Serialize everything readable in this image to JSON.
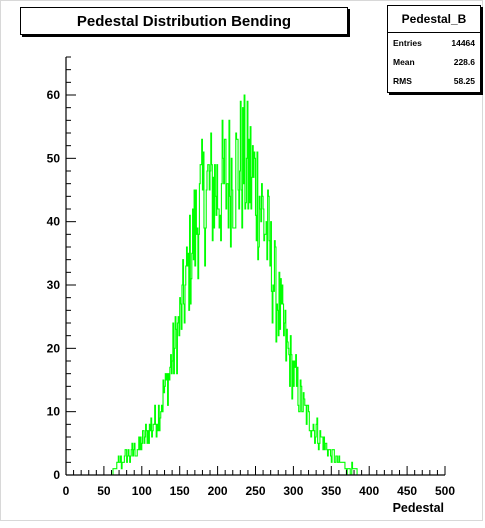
{
  "chart_data": {
    "type": "histogram",
    "title": "Pedestal Distribution Bending",
    "xlabel": "Pedestal",
    "ylabel": "",
    "xlim": [
      0,
      500
    ],
    "ylim": [
      0,
      66
    ],
    "x_ticks": [
      0,
      50,
      100,
      150,
      200,
      250,
      300,
      350,
      400,
      450,
      500
    ],
    "y_ticks": [
      0,
      10,
      20,
      30,
      40,
      50,
      60
    ],
    "bin_width": 1,
    "line_color": "#00ff00",
    "grid": false,
    "series": [
      {
        "name": "Pedestal_B",
        "x": [
          50,
          55,
          60,
          65,
          70,
          75,
          80,
          85,
          90,
          95,
          100,
          105,
          110,
          115,
          120,
          125,
          130,
          135,
          140,
          145,
          150,
          155,
          160,
          165,
          170,
          175,
          180,
          185,
          190,
          195,
          200,
          205,
          210,
          215,
          220,
          225,
          230,
          235,
          240,
          245,
          250,
          255,
          260,
          265,
          270,
          275,
          280,
          285,
          290,
          295,
          300,
          305,
          310,
          315,
          320,
          325,
          330,
          335,
          340,
          345,
          350,
          355,
          360,
          365,
          370,
          375,
          380,
          385,
          390,
          395,
          400,
          405,
          410,
          415,
          420
        ],
        "values": [
          0,
          0,
          0,
          1,
          2,
          2,
          3,
          3,
          4,
          4,
          5,
          6,
          7,
          8,
          9,
          11,
          13,
          15,
          18,
          21,
          24,
          27,
          31,
          35,
          38,
          41,
          43,
          44,
          45,
          45,
          45,
          45,
          46,
          47,
          48,
          48,
          49,
          49,
          48,
          47,
          46,
          44,
          41,
          38,
          34,
          30,
          27,
          24,
          21,
          18,
          16,
          14,
          12,
          10,
          9,
          8,
          7,
          6,
          5,
          4,
          3,
          3,
          2,
          2,
          1,
          1,
          1,
          0,
          0,
          0,
          0,
          0,
          0,
          0,
          0
        ]
      }
    ]
  },
  "stats": {
    "title": "Pedestal_B",
    "rows": [
      {
        "label": "Entries",
        "value": "14464"
      },
      {
        "label": "Mean",
        "value": "228.6"
      },
      {
        "label": "RMS",
        "value": "58.25"
      }
    ]
  }
}
